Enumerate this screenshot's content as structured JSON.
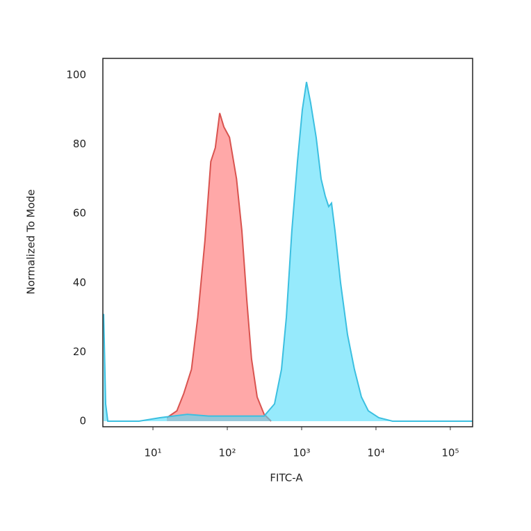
{
  "chart_data": {
    "type": "area",
    "x_label": "FITC-A",
    "y_label": "Normalized To Mode",
    "xscale": "log",
    "xlim": [
      2.12,
      199500
    ],
    "ylim": [
      -1.6,
      104.8
    ],
    "xticks": [
      {
        "value": 10,
        "label": "10¹"
      },
      {
        "value": 100,
        "label": "10²"
      },
      {
        "value": 1000,
        "label": "10³"
      },
      {
        "value": 10000,
        "label": "10⁴"
      },
      {
        "value": 100000,
        "label": "10⁵"
      }
    ],
    "yticks": [
      0,
      20,
      40,
      60,
      80,
      100
    ],
    "grid": false,
    "series": [
      {
        "color": "#d9534f",
        "fill": "rgba(255,110,110,0.6)",
        "x": [
          15.4,
          21,
          26,
          33,
          40,
          50,
          60,
          69,
          79,
          90,
          107,
          133,
          157,
          183,
          212,
          252,
          313,
          389
        ],
        "values": [
          1,
          3,
          8,
          15,
          30,
          52,
          75,
          79,
          89,
          85,
          82,
          70,
          55,
          35,
          18,
          7,
          2,
          0
        ]
      },
      {
        "color": "#3bbfe0",
        "fill": "rgba(80,220,250,0.6)",
        "x": [
          2.17,
          2.31,
          2.47,
          6.5,
          12.4,
          29,
          56,
          313,
          432,
          536,
          623,
          739,
          879,
          1021,
          1162,
          1321,
          1570,
          1827,
          2080,
          2313,
          2522,
          2810,
          3337,
          4140,
          5130,
          6370,
          7890,
          10900,
          16700,
          199500
        ],
        "values": [
          31,
          5,
          0,
          0,
          1,
          2,
          1.5,
          1.5,
          5,
          15,
          30,
          55,
          75,
          90,
          98,
          92,
          82,
          70,
          65,
          62,
          63,
          55,
          40,
          25,
          15,
          7,
          3,
          1,
          0,
          0
        ]
      }
    ]
  }
}
